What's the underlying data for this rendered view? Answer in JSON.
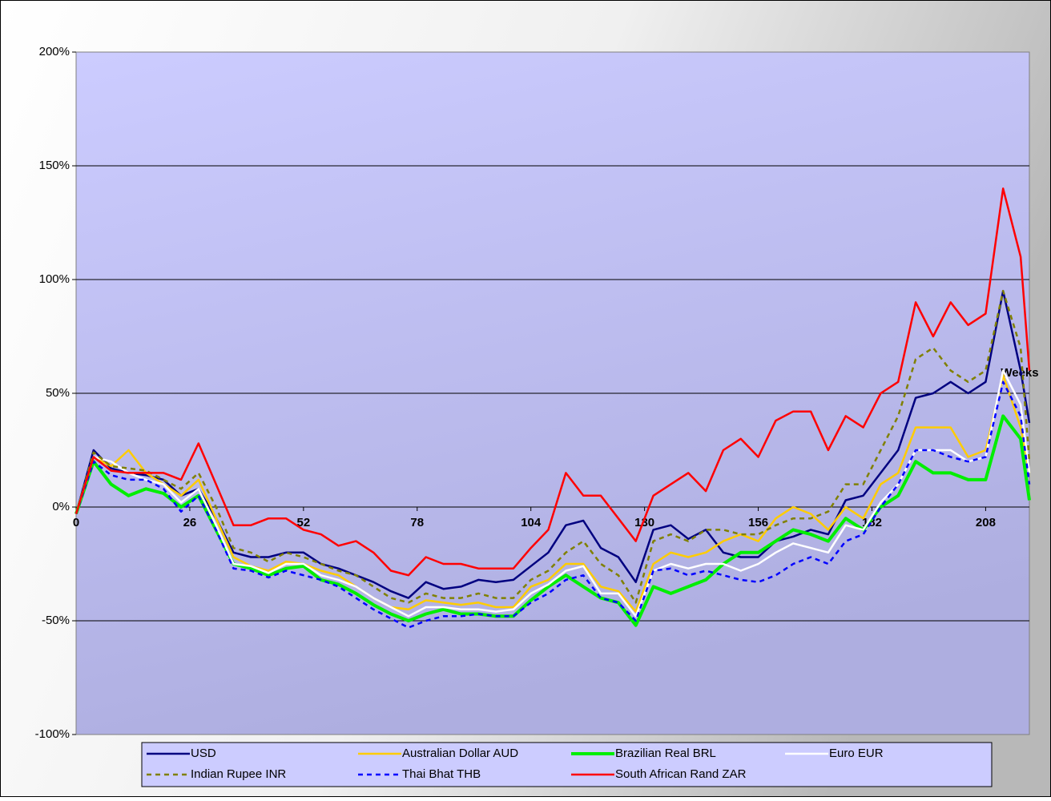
{
  "chart_data": {
    "type": "line",
    "x_label": "Weeks",
    "x": [
      0,
      4,
      8,
      12,
      16,
      20,
      24,
      28,
      32,
      36,
      40,
      44,
      48,
      52,
      56,
      60,
      64,
      68,
      72,
      76,
      80,
      84,
      88,
      92,
      96,
      100,
      104,
      108,
      112,
      116,
      120,
      124,
      128,
      132,
      136,
      140,
      144,
      148,
      152,
      156,
      160,
      164,
      168,
      172,
      176,
      180,
      184,
      188,
      192,
      196,
      200,
      204,
      208,
      212,
      216,
      218
    ],
    "xlim": [
      0,
      218
    ],
    "xticks": [
      0,
      26,
      52,
      78,
      104,
      130,
      156,
      182,
      208
    ],
    "ylim": [
      -100,
      200
    ],
    "yticks": [
      {
        "value": -100,
        "label": "-100%"
      },
      {
        "value": -50,
        "label": "-50%"
      },
      {
        "value": 0,
        "label": "0%"
      },
      {
        "value": 50,
        "label": "50%"
      },
      {
        "value": 100,
        "label": "100%"
      },
      {
        "value": 150,
        "label": "150%"
      },
      {
        "value": 200,
        "label": "200%"
      }
    ],
    "grid": true,
    "legend": "bottom",
    "series": [
      {
        "name": "USD",
        "color": "#000080",
        "values": [
          -3,
          25,
          17,
          15,
          14,
          12,
          5,
          8,
          -5,
          -20,
          -22,
          -22,
          -20,
          -20,
          -25,
          -27,
          -30,
          -33,
          -37,
          -40,
          -33,
          -36,
          -35,
          -32,
          -33,
          -32,
          -26,
          -20,
          -8,
          -6,
          -18,
          -22,
          -33,
          -10,
          -8,
          -14,
          -10,
          -20,
          -22,
          -22,
          -15,
          -13,
          -10,
          -12,
          3,
          5,
          15,
          25,
          48,
          50,
          55,
          50,
          55,
          95,
          60,
          37
        ]
      },
      {
        "name": "Australian Dollar AUD",
        "color": "#ffcc00",
        "values": [
          -3,
          22,
          18,
          25,
          15,
          10,
          5,
          12,
          -5,
          -22,
          -26,
          -28,
          -24,
          -25,
          -28,
          -30,
          -35,
          -40,
          -44,
          -45,
          -41,
          -42,
          -43,
          -42,
          -44,
          -44,
          -35,
          -32,
          -25,
          -25,
          -35,
          -37,
          -46,
          -25,
          -20,
          -22,
          -20,
          -15,
          -12,
          -15,
          -5,
          0,
          -3,
          -10,
          0,
          -5,
          10,
          15,
          35,
          35,
          35,
          22,
          25,
          58,
          35,
          15
        ]
      },
      {
        "name": "Brazilian Real BRL",
        "color": "#00ee00",
        "values": [
          -3,
          20,
          10,
          5,
          8,
          6,
          0,
          5,
          -10,
          -25,
          -27,
          -30,
          -27,
          -26,
          -32,
          -34,
          -38,
          -43,
          -47,
          -50,
          -47,
          -45,
          -47,
          -47,
          -48,
          -48,
          -41,
          -35,
          -30,
          -35,
          -40,
          -42,
          -52,
          -35,
          -38,
          -35,
          -32,
          -25,
          -20,
          -20,
          -15,
          -10,
          -12,
          -15,
          -5,
          -10,
          0,
          5,
          20,
          15,
          15,
          12,
          12,
          40,
          30,
          3
        ]
      },
      {
        "name": "Euro EUR",
        "color": "#ffffff",
        "values": [
          -3,
          22,
          20,
          15,
          12,
          10,
          2,
          8,
          -8,
          -25,
          -26,
          -29,
          -25,
          -25,
          -30,
          -32,
          -35,
          -40,
          -44,
          -48,
          -44,
          -44,
          -45,
          -45,
          -46,
          -45,
          -38,
          -34,
          -28,
          -26,
          -38,
          -38,
          -48,
          -28,
          -25,
          -27,
          -25,
          -25,
          -28,
          -25,
          -20,
          -16,
          -18,
          -20,
          -8,
          -10,
          2,
          10,
          25,
          25,
          25,
          20,
          22,
          60,
          45,
          15
        ]
      },
      {
        "name": "Indian Rupee INR",
        "color": "#808000",
        "dash": true,
        "values": [
          -3,
          24,
          18,
          17,
          16,
          12,
          8,
          15,
          0,
          -18,
          -20,
          -24,
          -20,
          -22,
          -25,
          -28,
          -30,
          -35,
          -40,
          -42,
          -38,
          -40,
          -40,
          -38,
          -40,
          -40,
          -32,
          -28,
          -20,
          -15,
          -25,
          -30,
          -42,
          -15,
          -12,
          -15,
          -10,
          -10,
          -12,
          -12,
          -8,
          -5,
          -5,
          -2,
          10,
          10,
          25,
          40,
          65,
          70,
          60,
          55,
          60,
          95,
          70,
          20
        ]
      },
      {
        "name": "Thai Bhat THB",
        "color": "#0000ff",
        "dash": true,
        "values": [
          -3,
          20,
          14,
          12,
          12,
          8,
          -2,
          5,
          -10,
          -27,
          -28,
          -31,
          -28,
          -30,
          -32,
          -35,
          -40,
          -45,
          -49,
          -53,
          -50,
          -48,
          -48,
          -47,
          -48,
          -48,
          -42,
          -38,
          -32,
          -30,
          -40,
          -42,
          -50,
          -28,
          -27,
          -30,
          -28,
          -30,
          -32,
          -33,
          -30,
          -25,
          -22,
          -25,
          -15,
          -12,
          0,
          10,
          25,
          25,
          22,
          20,
          22,
          55,
          40,
          10
        ]
      },
      {
        "name": "South African Rand ZAR",
        "color": "#ff0000",
        "values": [
          -3,
          22,
          16,
          15,
          15,
          15,
          12,
          28,
          10,
          -8,
          -8,
          -5,
          -5,
          -10,
          -12,
          -17,
          -15,
          -20,
          -28,
          -30,
          -22,
          -25,
          -25,
          -27,
          -27,
          -27,
          -18,
          -10,
          15,
          5,
          5,
          -5,
          -15,
          5,
          10,
          15,
          7,
          25,
          30,
          22,
          38,
          42,
          42,
          25,
          40,
          35,
          50,
          55,
          90,
          75,
          90,
          80,
          85,
          140,
          110,
          60
        ]
      }
    ]
  }
}
